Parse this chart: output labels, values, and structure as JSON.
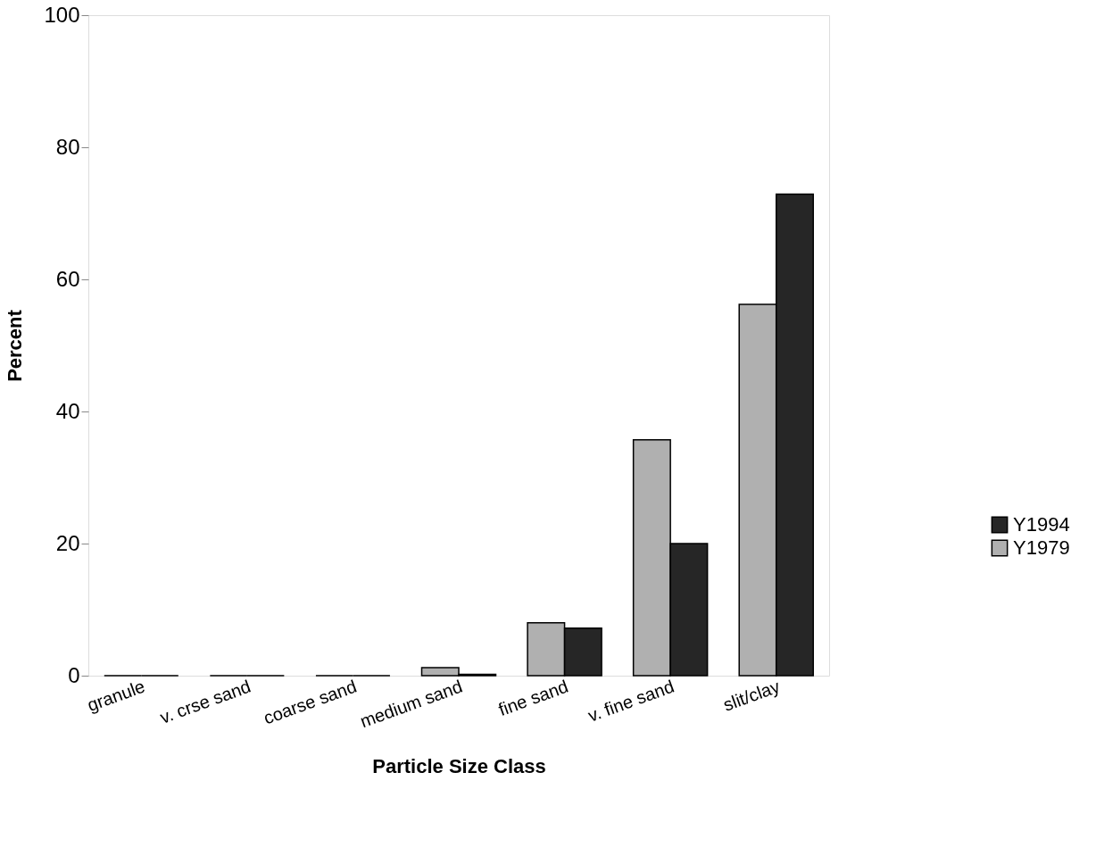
{
  "chart_data": {
    "type": "bar",
    "xlabel": "Particle Size Class",
    "ylabel": "Percent",
    "categories": [
      "granule",
      "v. crse sand",
      "coarse sand",
      "medium sand",
      "fine sand",
      "v. fine sand",
      "slit/clay"
    ],
    "series": [
      {
        "name": "Y1979",
        "color": "#b0b0b0",
        "values": [
          0,
          0,
          0,
          1.2,
          8.0,
          35.7,
          56.2
        ]
      },
      {
        "name": "Y1994",
        "color": "#262626",
        "values": [
          0,
          0,
          0,
          0.2,
          7.2,
          20.0,
          72.9
        ]
      }
    ],
    "ylim": [
      0,
      100
    ],
    "yticks": [
      0,
      20,
      40,
      60,
      80,
      100
    ],
    "grid": false,
    "legend": "bottom right"
  }
}
